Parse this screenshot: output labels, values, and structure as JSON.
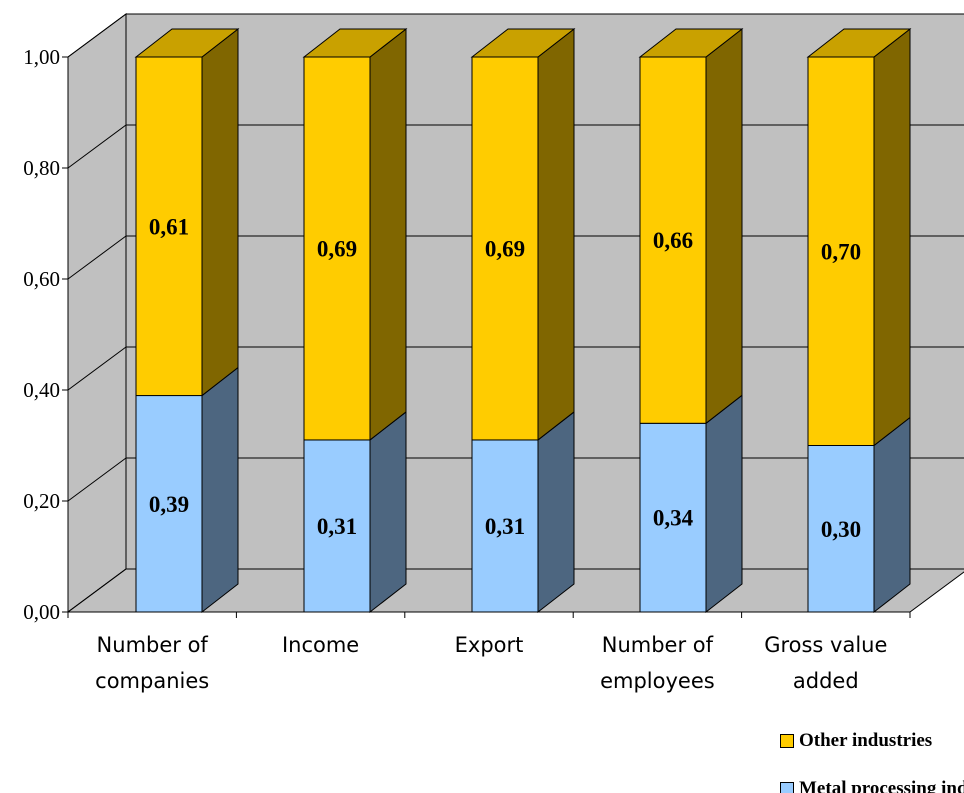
{
  "chart_data": {
    "type": "bar",
    "stacked": true,
    "three_d": true,
    "title": "",
    "xlabel": "",
    "ylabel": "",
    "ylim": [
      0,
      1
    ],
    "y_ticks": [
      "0,00",
      "0,20",
      "0,40",
      "0,60",
      "0,80",
      "1,00"
    ],
    "y_tick_values": [
      0,
      0.2,
      0.4,
      0.6,
      0.8,
      1.0
    ],
    "grid": true,
    "legend_position": "bottom-right",
    "categories": [
      [
        "Number of",
        "companies"
      ],
      [
        "Income"
      ],
      [
        "Export"
      ],
      [
        "Number of",
        "employees"
      ],
      [
        "Gross value",
        "added"
      ]
    ],
    "series": [
      {
        "name": "Metal processing industry",
        "values": [
          0.39,
          0.31,
          0.31,
          0.34,
          0.3
        ],
        "labels": [
          "0,39",
          "0,31",
          "0,31",
          "0,34",
          "0,30"
        ],
        "color": "#99CCFF",
        "side_color": "#4D6680",
        "top_color": "#99CCFF"
      },
      {
        "name": "Other industries",
        "values": [
          0.61,
          0.69,
          0.69,
          0.66,
          0.7
        ],
        "labels": [
          "0,61",
          "0,69",
          "0,69",
          "0,66",
          "0,70"
        ],
        "color": "#FFCC00",
        "side_color": "#806600",
        "top_color": "#C9A100"
      }
    ],
    "floor_color": "#C0C0C0",
    "wall_color": "#C0C0C0",
    "gridline_color": "#000000"
  },
  "legend": {
    "items": [
      {
        "label": "Other industries",
        "color": "#FFCC00"
      },
      {
        "label": "Metal processing industry",
        "color": "#99CCFF"
      }
    ]
  }
}
